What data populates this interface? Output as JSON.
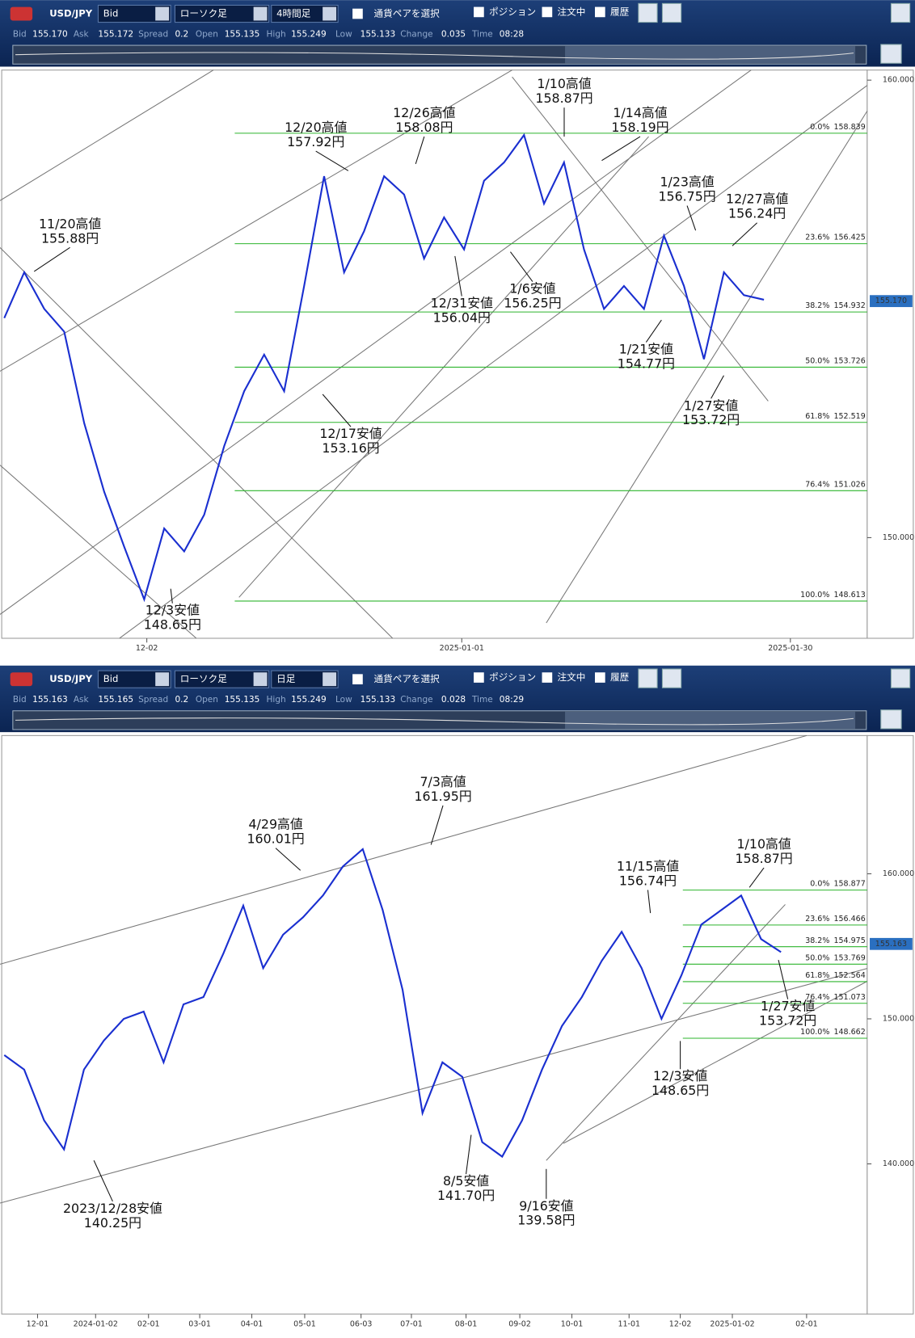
{
  "panels": [
    {
      "toolbar": {
        "pair": "USD/JPY",
        "price_type": "Bid",
        "chart_type": "ローソク足",
        "timeframe": "4時間足",
        "select_pair": "通貨ペアを選択",
        "toggles": [
          "ポジション",
          "注文中",
          "履歴"
        ]
      },
      "quote": [
        {
          "label": "Bid",
          "value": "155.170"
        },
        {
          "label": "Ask",
          "value": "155.172"
        },
        {
          "label": "Spread",
          "value": "0.2"
        },
        {
          "label": "Open",
          "value": "155.135"
        },
        {
          "label": "High",
          "value": "155.249"
        },
        {
          "label": "Low",
          "value": "155.133"
        },
        {
          "label": "Change",
          "value": "0.035"
        },
        {
          "label": "Time",
          "value": "08:28"
        }
      ],
      "ylim": [
        147.8,
        160.22
      ],
      "yticks": [
        {
          "value": 150,
          "label": "150.000"
        },
        {
          "value": 160,
          "label": "160.000"
        }
      ],
      "xticks": [
        "12-02",
        "2025-01-01",
        "2025-01-30"
      ],
      "fib": [
        {
          "label": "0.0%",
          "value": 158.839
        },
        {
          "label": "23.6%",
          "value": 156.425
        },
        {
          "label": "38.2%",
          "value": 154.932
        },
        {
          "label": "50.0%",
          "value": 153.726
        },
        {
          "label": "61.8%",
          "value": 152.519
        },
        {
          "label": "76.4%",
          "value": 151.026
        },
        {
          "label": "100.0%",
          "value": 148.613
        }
      ],
      "current_price": {
        "value": 155.17,
        "label": "155.170"
      },
      "annotations": [
        {
          "date_label": "11/20高値",
          "price_label": "155.88円"
        },
        {
          "date_label": "12/20高値",
          "price_label": "157.92円"
        },
        {
          "date_label": "12/26高値",
          "price_label": "158.08円"
        },
        {
          "date_label": "1/10高値",
          "price_label": "158.87円"
        },
        {
          "date_label": "1/14高値",
          "price_label": "158.19円"
        },
        {
          "date_label": "1/23高値",
          "price_label": "156.75円"
        },
        {
          "date_label": "12/27高値",
          "price_label": "156.24円"
        },
        {
          "date_label": "12/31安値",
          "price_label": "156.04円"
        },
        {
          "date_label": "1/6安値",
          "price_label": "156.25円"
        },
        {
          "date_label": "1/21安値",
          "price_label": "154.77円"
        },
        {
          "date_label": "1/27安値",
          "price_label": "153.72円"
        },
        {
          "date_label": "12/17安値",
          "price_label": "153.16円"
        },
        {
          "date_label": "12/3安値",
          "price_label": "148.65円"
        }
      ],
      "close": [
        154.8,
        155.8,
        155.0,
        154.5,
        152.5,
        151.0,
        149.8,
        148.65,
        150.2,
        149.7,
        150.5,
        152.0,
        153.2,
        154.0,
        153.2,
        155.5,
        157.9,
        155.8,
        156.7,
        157.9,
        157.5,
        156.1,
        157.0,
        156.3,
        157.8,
        158.2,
        158.8,
        157.3,
        158.2,
        156.3,
        155.0,
        155.5,
        155.0,
        156.6,
        155.5,
        153.9,
        155.8,
        155.3,
        155.2
      ]
    },
    {
      "toolbar": {
        "pair": "USD/JPY",
        "price_type": "Bid",
        "chart_type": "ローソク足",
        "timeframe": "日足",
        "select_pair": "通貨ペアを選択",
        "toggles": [
          "ポジション",
          "注文中",
          "履歴"
        ]
      },
      "quote": [
        {
          "label": "Bid",
          "value": "155.163"
        },
        {
          "label": "Ask",
          "value": "155.165"
        },
        {
          "label": "Spread",
          "value": "0.2"
        },
        {
          "label": "Open",
          "value": "155.135"
        },
        {
          "label": "High",
          "value": "155.249"
        },
        {
          "label": "Low",
          "value": "155.133"
        },
        {
          "label": "Change",
          "value": "0.028"
        },
        {
          "label": "Time",
          "value": "08:29"
        }
      ],
      "ylim": [
        129.65,
        169.53
      ],
      "yticks": [
        {
          "value": 140,
          "label": "140.000"
        },
        {
          "value": 150,
          "label": "150.000"
        },
        {
          "value": 160,
          "label": "160.000"
        }
      ],
      "xticks": [
        "12-01",
        "2024-01-02",
        "02-01",
        "03-01",
        "04-01",
        "05-01",
        "06-03",
        "07-01",
        "08-01",
        "09-02",
        "10-01",
        "11-01",
        "12-02",
        "2025-01-02",
        "02-01"
      ],
      "fib": [
        {
          "label": "0.0%",
          "value": 158.877
        },
        {
          "label": "23.6%",
          "value": 156.466
        },
        {
          "label": "38.2%",
          "value": 154.975
        },
        {
          "label": "50.0%",
          "value": 153.769
        },
        {
          "label": "61.8%",
          "value": 152.564
        },
        {
          "label": "76.4%",
          "value": 151.073
        },
        {
          "label": "100.0%",
          "value": 148.662
        }
      ],
      "current_price": {
        "value": 155.163,
        "label": "155.163"
      },
      "annotations": [
        {
          "date_label": "4/29高値",
          "price_label": "160.01円"
        },
        {
          "date_label": "7/3高値",
          "price_label": "161.95円"
        },
        {
          "date_label": "1/10高値",
          "price_label": "158.87円"
        },
        {
          "date_label": "11/15高値",
          "price_label": "156.74円"
        },
        {
          "date_label": "1/27安値",
          "price_label": "153.72円"
        },
        {
          "date_label": "12/3安値",
          "price_label": "148.65円"
        },
        {
          "date_label": "8/5安値",
          "price_label": "141.70円"
        },
        {
          "date_label": "9/16安値",
          "price_label": "139.58円"
        },
        {
          "date_label": "2023/12/28安値",
          "price_label": "140.25円"
        }
      ],
      "close": [
        147.5,
        146.5,
        143.0,
        141.0,
        146.5,
        148.5,
        150.0,
        150.5,
        147.0,
        151.0,
        151.5,
        154.5,
        157.8,
        153.5,
        155.8,
        157.0,
        158.5,
        160.5,
        161.7,
        157.5,
        152.0,
        143.5,
        147.0,
        146.0,
        141.5,
        140.5,
        143.0,
        146.5,
        149.5,
        151.5,
        154.0,
        156.0,
        153.5,
        150.0,
        153.0,
        156.5,
        157.5,
        158.5,
        155.5,
        154.6
      ]
    }
  ]
}
